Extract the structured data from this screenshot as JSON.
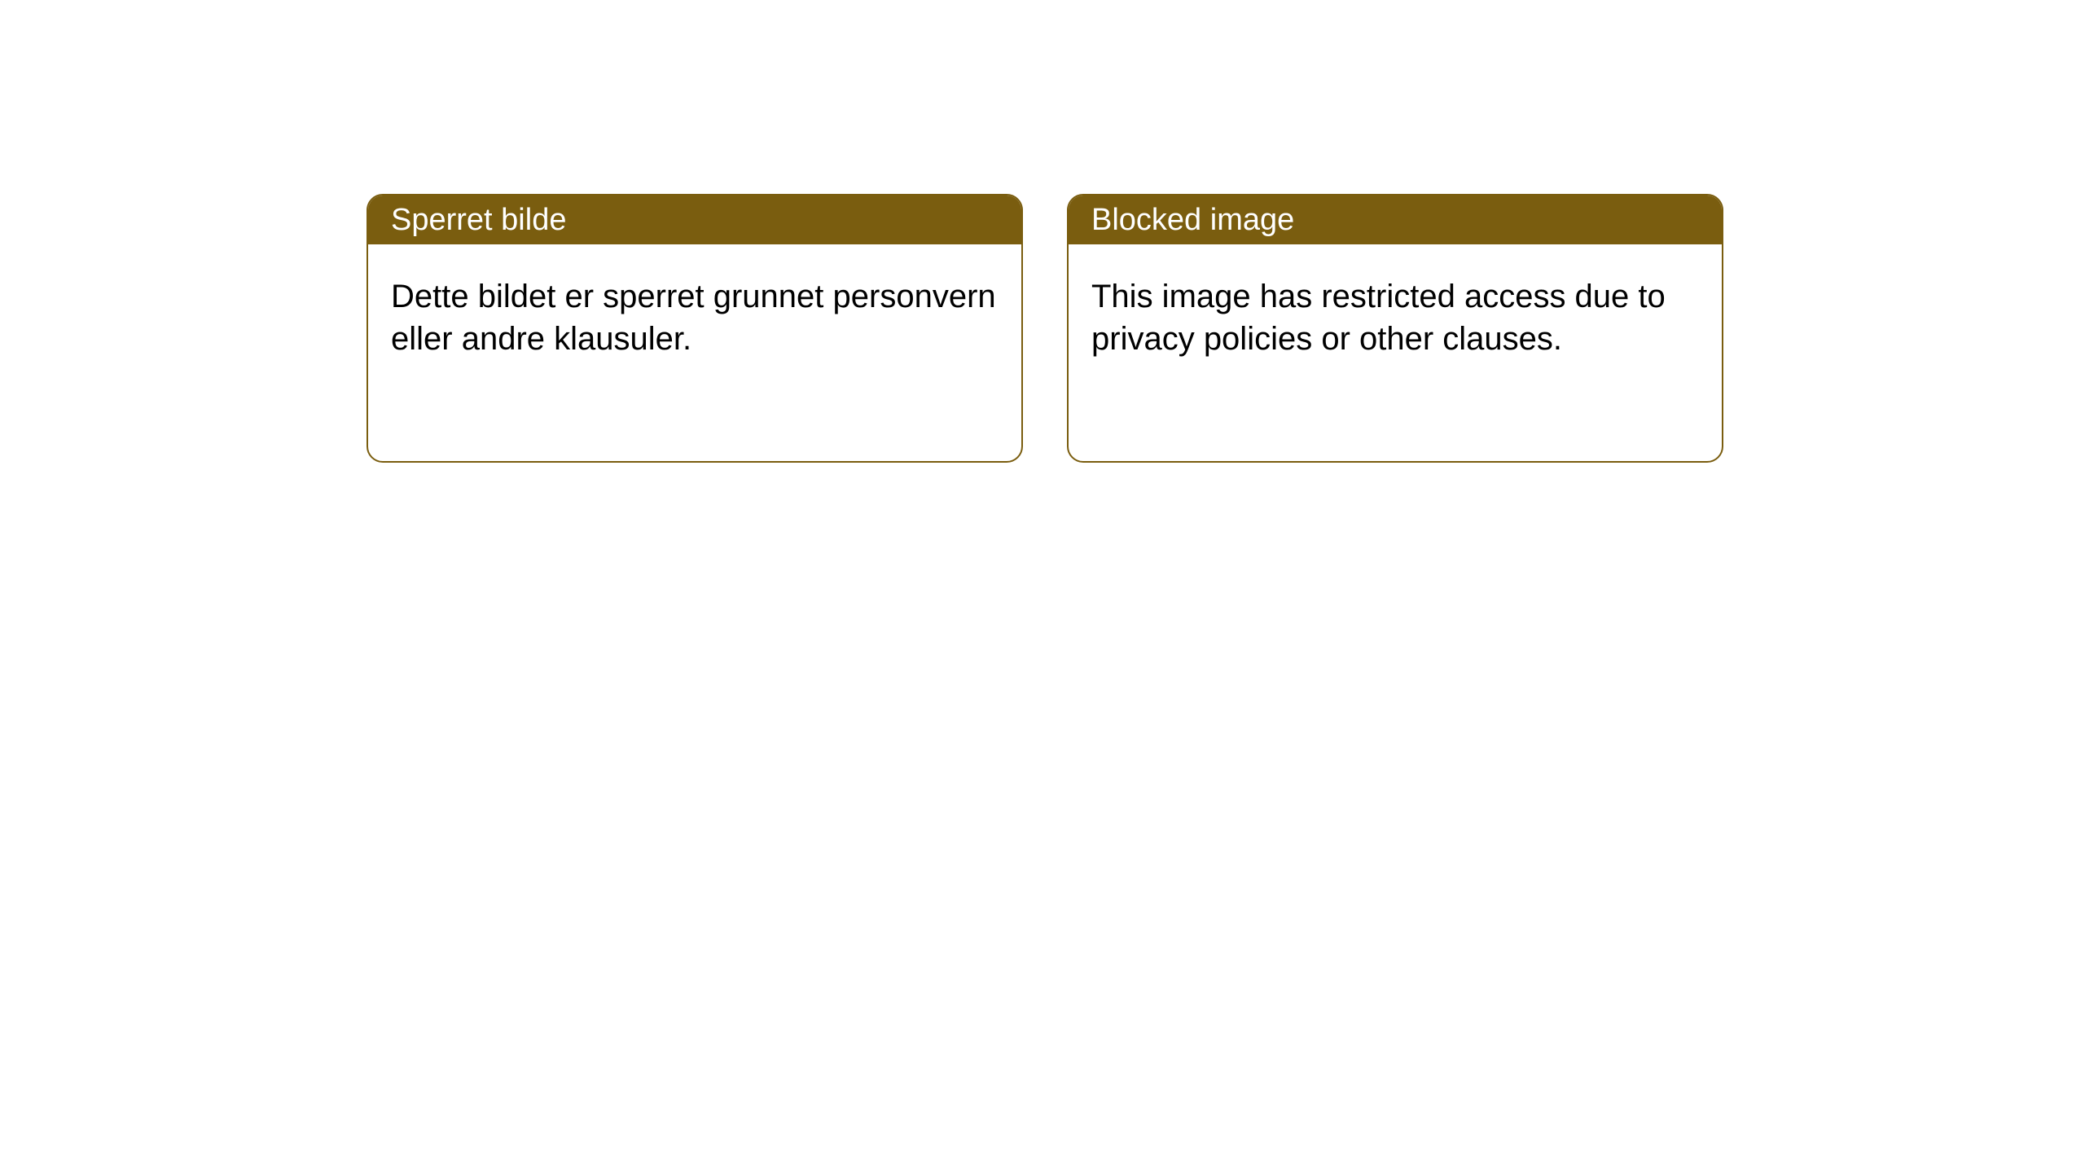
{
  "cards": [
    {
      "title": "Sperret bilde",
      "body": "Dette bildet er sperret grunnet personvern eller andre klausuler."
    },
    {
      "title": "Blocked image",
      "body": "This image has restricted access due to privacy policies or other clauses."
    }
  ],
  "style": {
    "header_bg": "#7a5d0f",
    "header_text": "#ffffff",
    "border_color": "#7a5d0f",
    "body_text": "#000000",
    "page_bg": "#ffffff",
    "border_radius": 20,
    "title_fontsize": 38,
    "body_fontsize": 40
  }
}
